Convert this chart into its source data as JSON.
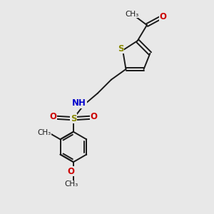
{
  "background_color": "#e8e8e8",
  "bond_color": "#1a1a1a",
  "S_color": "#888800",
  "O_color": "#cc0000",
  "N_color": "#0000cc",
  "text_color": "#1a1a1a",
  "bond_width": 1.4,
  "figsize": [
    3.0,
    3.0
  ],
  "dpi": 100,
  "xlim": [
    0,
    10
  ],
  "ylim": [
    0,
    10
  ]
}
